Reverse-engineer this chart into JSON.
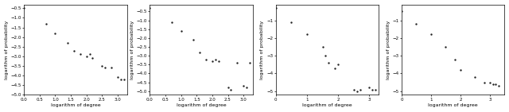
{
  "plots": [
    {
      "x": [
        0.0,
        0.7,
        1.0,
        1.4,
        1.6,
        1.8,
        2.0,
        2.1,
        2.2,
        2.5,
        2.6,
        2.8,
        3.0,
        3.1,
        3.2
      ],
      "y": [
        -0.5,
        -1.3,
        -1.8,
        -2.3,
        -2.7,
        -2.9,
        -3.0,
        -2.9,
        -3.1,
        -3.5,
        -3.6,
        -3.6,
        -4.1,
        -4.2,
        -4.2
      ],
      "xlim": [
        0.0,
        3.3
      ],
      "ylim": [
        -5.0,
        -0.3
      ],
      "xticks": [
        0.0,
        0.5,
        1.0,
        1.5,
        2.0,
        2.5,
        3.0
      ],
      "yticks": [
        -5.0,
        -4.5,
        -4.0,
        -3.5,
        -3.0,
        -2.5,
        -2.0,
        -1.5,
        -1.0,
        -0.5
      ]
    },
    {
      "x": [
        0.0,
        0.7,
        1.0,
        1.4,
        1.6,
        1.8,
        2.0,
        2.1,
        2.2,
        2.5,
        2.6,
        2.8,
        3.0,
        3.1,
        3.2
      ],
      "y": [
        -0.3,
        -1.1,
        -1.6,
        -2.1,
        -2.8,
        -3.2,
        -3.3,
        -3.2,
        -3.3,
        -4.8,
        -4.9,
        -3.4,
        -4.7,
        -4.8,
        -3.4
      ],
      "xlim": [
        0.0,
        3.3
      ],
      "ylim": [
        -5.2,
        -0.1
      ],
      "xticks": [
        0.0,
        0.5,
        1.0,
        1.5,
        2.0,
        2.5,
        3.0
      ],
      "yticks": [
        -5.0,
        -4.5,
        -4.0,
        -3.5,
        -3.0,
        -2.5,
        -2.0,
        -1.5,
        -1.0,
        -0.5
      ]
    },
    {
      "x": [
        0.0,
        0.5,
        1.0,
        1.5,
        1.6,
        1.7,
        1.9,
        2.0,
        2.5,
        2.6,
        2.7,
        3.0,
        3.1,
        3.2
      ],
      "y": [
        -0.3,
        -1.1,
        -1.8,
        -2.5,
        -3.0,
        -3.4,
        -3.7,
        -3.5,
        -4.9,
        -5.0,
        -4.9,
        -4.8,
        -4.9,
        -4.9
      ],
      "xlim": [
        0.0,
        3.3
      ],
      "ylim": [
        -5.2,
        -0.1
      ],
      "xticks": [
        0,
        1,
        2,
        3
      ],
      "yticks": [
        -5.0,
        -4.0,
        -3.0,
        -2.0,
        -1.0
      ]
    },
    {
      "x": [
        0.0,
        0.5,
        1.0,
        1.5,
        1.8,
        2.0,
        2.5,
        2.8,
        3.0,
        3.1,
        3.2,
        3.3
      ],
      "y": [
        -0.5,
        -1.2,
        -1.8,
        -2.5,
        -3.2,
        -3.8,
        -4.2,
        -4.5,
        -4.5,
        -4.6,
        -4.6,
        -4.7
      ],
      "xlim": [
        0.0,
        3.5
      ],
      "ylim": [
        -5.2,
        -0.1
      ],
      "xticks": [
        0,
        1,
        2,
        3
      ],
      "yticks": [
        -5.0,
        -4.0,
        -3.0,
        -2.0,
        -1.0
      ]
    }
  ],
  "point_color": "#222222",
  "point_size": 3,
  "bg_color": "white",
  "tick_labelsize": 4,
  "axis_labelsize": 4.5,
  "spine_linewidth": 0.5
}
